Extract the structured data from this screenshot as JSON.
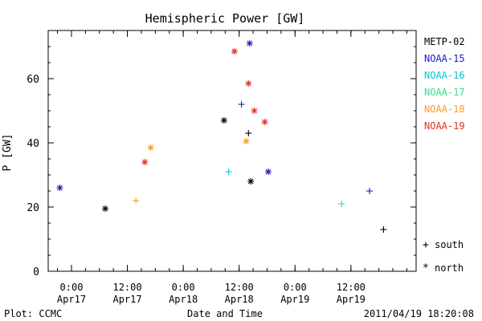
{
  "chart_data": {
    "type": "scatter",
    "title": "Hemispheric Power [GW]",
    "ylabel": "P [GW]",
    "xlabel": "Date and Time",
    "ylim": [
      0,
      75
    ],
    "yticks": [
      0,
      20,
      40,
      60
    ],
    "xlim": [
      "2011-04-16 19:00",
      "2011-04-20 02:00"
    ],
    "xticks": [
      {
        "top": "0:00",
        "bottom": "Apr17",
        "t": "2011-04-17 00:00"
      },
      {
        "top": "12:00",
        "bottom": "Apr17",
        "t": "2011-04-17 12:00"
      },
      {
        "top": "0:00",
        "bottom": "Apr18",
        "t": "2011-04-18 00:00"
      },
      {
        "top": "12:00",
        "bottom": "Apr18",
        "t": "2011-04-18 12:00"
      },
      {
        "top": "0:00",
        "bottom": "Apr19",
        "t": "2011-04-19 00:00"
      },
      {
        "top": "12:00",
        "bottom": "Apr19",
        "t": "2011-04-19 12:00"
      }
    ],
    "grid": false,
    "legend_position": "right",
    "series": [
      {
        "name": "METP-02",
        "color": "#000000"
      },
      {
        "name": "NOAA-15",
        "color": "#1a1acc"
      },
      {
        "name": "NOAA-16",
        "color": "#00c8dc"
      },
      {
        "name": "NOAA-17",
        "color": "#3cdc8c"
      },
      {
        "name": "NOAA-18",
        "color": "#ff9a1e"
      },
      {
        "name": "NOAA-19",
        "color": "#e0321e"
      }
    ],
    "marker_legend": [
      {
        "glyph": "+",
        "label": "south"
      },
      {
        "glyph": "*",
        "label": "north"
      }
    ],
    "anchor_points": [
      {
        "series": "METP-02",
        "hemisphere": "south",
        "t": "2011-04-18 14:00",
        "y": 43
      },
      {
        "series": "METP-02",
        "hemisphere": "north",
        "t": "2011-04-18 08:45",
        "y": 47
      },
      {
        "series": "METP-02",
        "hemisphere": "north",
        "t": "2011-04-18 14:30",
        "y": 28
      },
      {
        "series": "METP-02",
        "hemisphere": "north",
        "t": "2011-04-17 07:15",
        "y": 19.5
      },
      {
        "series": "METP-02",
        "hemisphere": "south",
        "t": "2011-04-19 19:00",
        "y": 13
      },
      {
        "series": "NOAA-15",
        "hemisphere": "north",
        "t": "2011-04-18 14:15",
        "y": 71
      },
      {
        "series": "NOAA-15",
        "hemisphere": "south",
        "t": "2011-04-18 12:30",
        "y": 52
      },
      {
        "series": "NOAA-15",
        "hemisphere": "north",
        "t": "2011-04-16 21:30",
        "y": 26
      },
      {
        "series": "NOAA-15",
        "hemisphere": "south",
        "t": "2011-04-19 16:00",
        "y": 25
      },
      {
        "series": "NOAA-15",
        "hemisphere": "north",
        "t": "2011-04-18 18:15",
        "y": 31
      },
      {
        "series": "NOAA-16",
        "hemisphere": "south",
        "t": "2011-04-18 09:45",
        "y": 31
      },
      {
        "series": "NOAA-17",
        "hemisphere": "south",
        "t": "2011-04-19 10:00",
        "y": 21
      },
      {
        "series": "NOAA-18",
        "hemisphere": "north",
        "t": "2011-04-17 17:00",
        "y": 38.5
      },
      {
        "series": "NOAA-18",
        "hemisphere": "north",
        "t": "2011-04-18 13:30",
        "y": 40.5
      },
      {
        "series": "NOAA-18",
        "hemisphere": "south",
        "t": "2011-04-17 13:50",
        "y": 22
      },
      {
        "series": "NOAA-19",
        "hemisphere": "north",
        "t": "2011-04-18 11:00",
        "y": 68.5
      },
      {
        "series": "NOAA-19",
        "hemisphere": "north",
        "t": "2011-04-18 14:00",
        "y": 58.5
      },
      {
        "series": "NOAA-19",
        "hemisphere": "north",
        "t": "2011-04-18 15:15",
        "y": 50
      },
      {
        "series": "NOAA-19",
        "hemisphere": "north",
        "t": "2011-04-18 17:30",
        "y": 46.5
      },
      {
        "series": "NOAA-19",
        "hemisphere": "north",
        "t": "2011-04-17 15:45",
        "y": 34
      }
    ]
  },
  "footer": {
    "credit": "Plot: CCMC",
    "timestamp": "2011/04/19 18:20:08"
  }
}
